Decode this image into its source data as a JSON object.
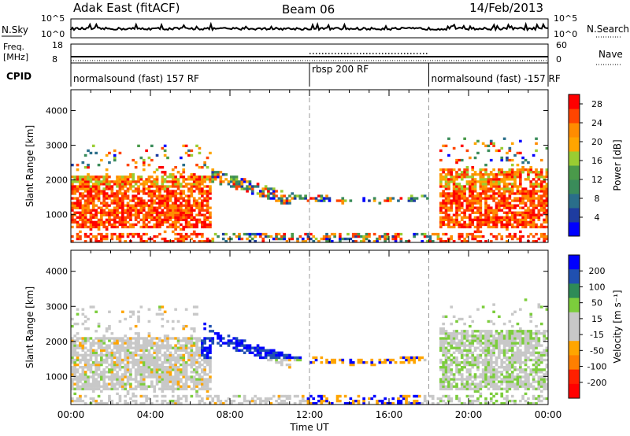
{
  "header": {
    "station": "Adak East (fitACF)",
    "beam": "Beam 06",
    "date": "14/Feb/2013"
  },
  "strips": {
    "nsky_label": "N.Sky",
    "nsky_ticks": [
      "10^5",
      "10^0"
    ],
    "nsearch_label": "N.Search",
    "nsearch_ticks": [
      "10^5",
      "10^0"
    ],
    "freq_label_1": "Freq.",
    "freq_label_2": "[MHz]",
    "freq_ticks": [
      "18",
      "8"
    ],
    "nave_label": "Nave",
    "nave_ticks": [
      "60",
      "0"
    ],
    "cpid_label": "CPID"
  },
  "cpid_segments": [
    {
      "label": "normalsound (fast) 157 RF",
      "start_h": 0
    },
    {
      "label": "rbsp 200 RF",
      "start_h": 12
    },
    {
      "label": "normalsound (fast) -157 RF",
      "start_h": 18
    }
  ],
  "colors": {
    "power_scale": [
      "#0000ff",
      "#1e3ca0",
      "#2a6e8a",
      "#3a8c5a",
      "#4a9a4a",
      "#9acd32",
      "#ffa500",
      "#ff8c00",
      "#ff4500",
      "#ff0000"
    ],
    "velocity_scale": [
      "#0000ff",
      "#2050b0",
      "#2e8b57",
      "#7ccd3c",
      "#c8c8c8",
      "#c8c8c8",
      "#ffa500",
      "#ff7f00",
      "#ff2000",
      "#ff0000"
    ]
  },
  "chart_data": [
    {
      "type": "heatmap",
      "quantity": "Power",
      "ylabel": "Slant Range [km]",
      "yticks": [
        "1000",
        "2000",
        "3000",
        "4000"
      ],
      "ylim": [
        200,
        4600
      ],
      "xlim_hours": [
        0,
        24
      ],
      "colorbar_label": "Power [dB]",
      "colorbar_ticks": [
        "4",
        "8",
        "12",
        "16",
        "20",
        "24",
        "28"
      ],
      "colorbar_range": [
        0,
        30
      ]
    },
    {
      "type": "heatmap",
      "quantity": "Velocity",
      "xlabel": "Time UT",
      "xticks": [
        "00:00",
        "04:00",
        "08:00",
        "12:00",
        "16:00",
        "20:00",
        "00:00"
      ],
      "ylabel": "Slant Range [km]",
      "yticks": [
        "1000",
        "2000",
        "3000",
        "4000"
      ],
      "ylim": [
        200,
        4600
      ],
      "xlim_hours": [
        0,
        24
      ],
      "colorbar_label": "Velocity [m s⁻¹]",
      "colorbar_ticks": [
        "200",
        "100",
        "50",
        "15",
        "-15",
        "-50",
        "-100",
        "-200"
      ]
    }
  ]
}
